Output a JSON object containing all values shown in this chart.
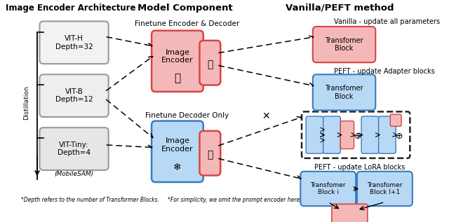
{
  "title_left": "Image Encoder Architecture",
  "title_mid": "Model Component",
  "title_right": "Vanilla/PEFT method",
  "bg_color": "#ffffff",
  "footnote1": "*Depth refers to the number of Transformer Blocks.",
  "footnote2": "*For simplicity, we omit the prompt encoder here."
}
